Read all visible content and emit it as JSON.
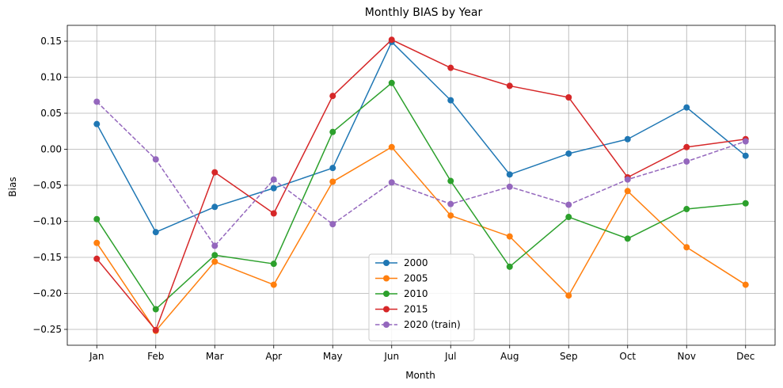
{
  "chart_data": {
    "type": "line",
    "title": "Monthly BIAS by Year",
    "xlabel": "Month",
    "ylabel": "Bias",
    "categories": [
      "Jan",
      "Feb",
      "Mar",
      "Apr",
      "May",
      "Jun",
      "Jul",
      "Aug",
      "Sep",
      "Oct",
      "Nov",
      "Dec"
    ],
    "ylim": [
      -0.272,
      0.172
    ],
    "yticks": [
      -0.25,
      -0.2,
      -0.15,
      -0.1,
      -0.05,
      0.0,
      0.05,
      0.1,
      0.15
    ],
    "ytick_labels": [
      "−0.25",
      "−0.20",
      "−0.15",
      "−0.10",
      "−0.05",
      "0.00",
      "0.05",
      "0.10",
      "0.15"
    ],
    "grid": true,
    "legend_position": "bottom-center",
    "series": [
      {
        "name": "2000",
        "color": "#1f77b4",
        "dashed": false,
        "values": [
          0.035,
          -0.115,
          -0.08,
          -0.054,
          -0.026,
          0.149,
          0.068,
          -0.035,
          -0.006,
          0.014,
          0.058,
          -0.009
        ]
      },
      {
        "name": "2005",
        "color": "#ff7f0e",
        "dashed": false,
        "values": [
          -0.13,
          -0.252,
          -0.156,
          -0.188,
          -0.045,
          0.003,
          -0.092,
          -0.121,
          -0.203,
          -0.058,
          -0.136,
          -0.188
        ]
      },
      {
        "name": "2010",
        "color": "#2ca02c",
        "dashed": false,
        "values": [
          -0.097,
          -0.222,
          -0.147,
          -0.159,
          0.024,
          0.092,
          -0.044,
          -0.163,
          -0.094,
          -0.124,
          -0.083,
          -0.075
        ]
      },
      {
        "name": "2015",
        "color": "#d62728",
        "dashed": false,
        "values": [
          -0.152,
          -0.251,
          -0.032,
          -0.089,
          0.074,
          0.152,
          0.113,
          0.088,
          0.072,
          -0.039,
          0.003,
          0.014
        ]
      },
      {
        "name": "2020 (train)",
        "color": "#9467bd",
        "dashed": true,
        "values": [
          0.066,
          -0.014,
          -0.134,
          -0.042,
          -0.104,
          -0.046,
          -0.076,
          -0.052,
          -0.077,
          -0.042,
          -0.017,
          0.011
        ]
      }
    ]
  }
}
